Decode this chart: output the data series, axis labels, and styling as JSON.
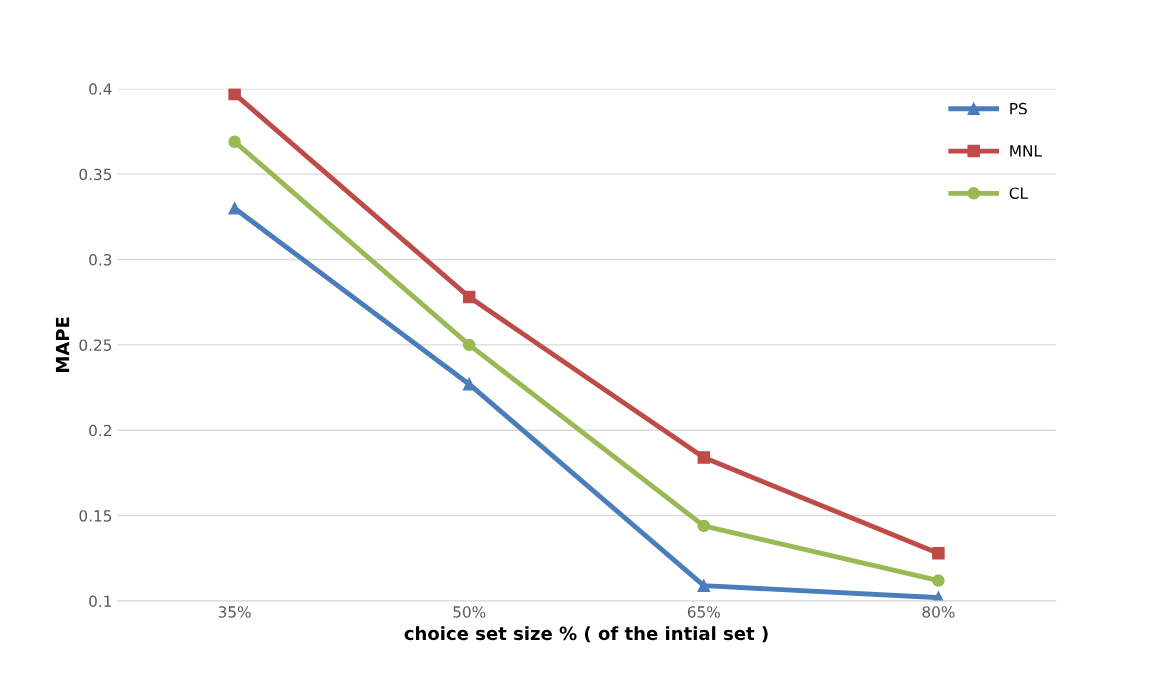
{
  "chart_data": {
    "type": "line",
    "xlabel": "choice set size % ( of the intial set )",
    "ylabel": "MAPE",
    "categories": [
      "35%",
      "50%",
      "65%",
      "80%"
    ],
    "series": [
      {
        "name": "PS",
        "color": "#4a7ebb",
        "marker": "triangle",
        "values": [
          0.33,
          0.227,
          0.109,
          0.102
        ]
      },
      {
        "name": "MNL",
        "color": "#be4b48",
        "marker": "square",
        "values": [
          0.397,
          0.278,
          0.184,
          0.128
        ]
      },
      {
        "name": "CL",
        "color": "#98b954",
        "marker": "circle",
        "values": [
          0.369,
          0.25,
          0.144,
          0.112
        ]
      }
    ],
    "ylim": [
      0.1,
      0.4
    ],
    "yticks": [
      0.1,
      0.15,
      0.2,
      0.25,
      0.3,
      0.35,
      0.4
    ],
    "grid": "y",
    "legend": "top right",
    "line_style": "solid"
  }
}
